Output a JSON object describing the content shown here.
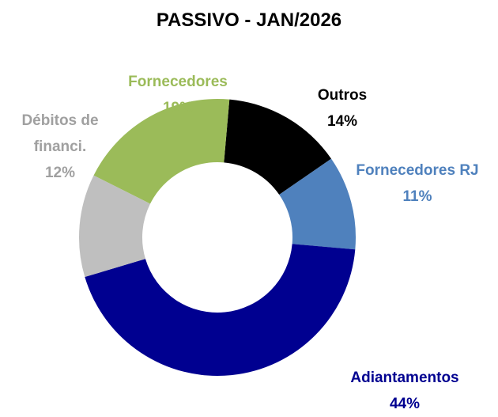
{
  "chart_data": {
    "type": "donut",
    "title": "PASSIVO - JAN/2026",
    "categories": [
      "Outros",
      "Fornecedores RJ",
      "Adiantamentos",
      "Débitos de financi.",
      "Fornecedores"
    ],
    "values": [
      14,
      11,
      44,
      12,
      19
    ],
    "value_labels": [
      "14%",
      "11%",
      "44%",
      "12%",
      "19%"
    ],
    "colors": [
      "#000000",
      "#4f81bd",
      "#000090",
      "#bfbfbf",
      "#9bbb59"
    ]
  }
}
